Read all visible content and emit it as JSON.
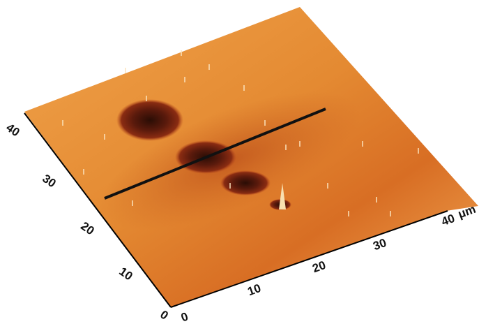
{
  "left_axis": {
    "ticks": [
      "0",
      "10",
      "20",
      "30",
      "40"
    ]
  },
  "bottom_axis": {
    "ticks": [
      "0",
      "10",
      "20",
      "30",
      "40"
    ],
    "unit": "μm"
  }
}
